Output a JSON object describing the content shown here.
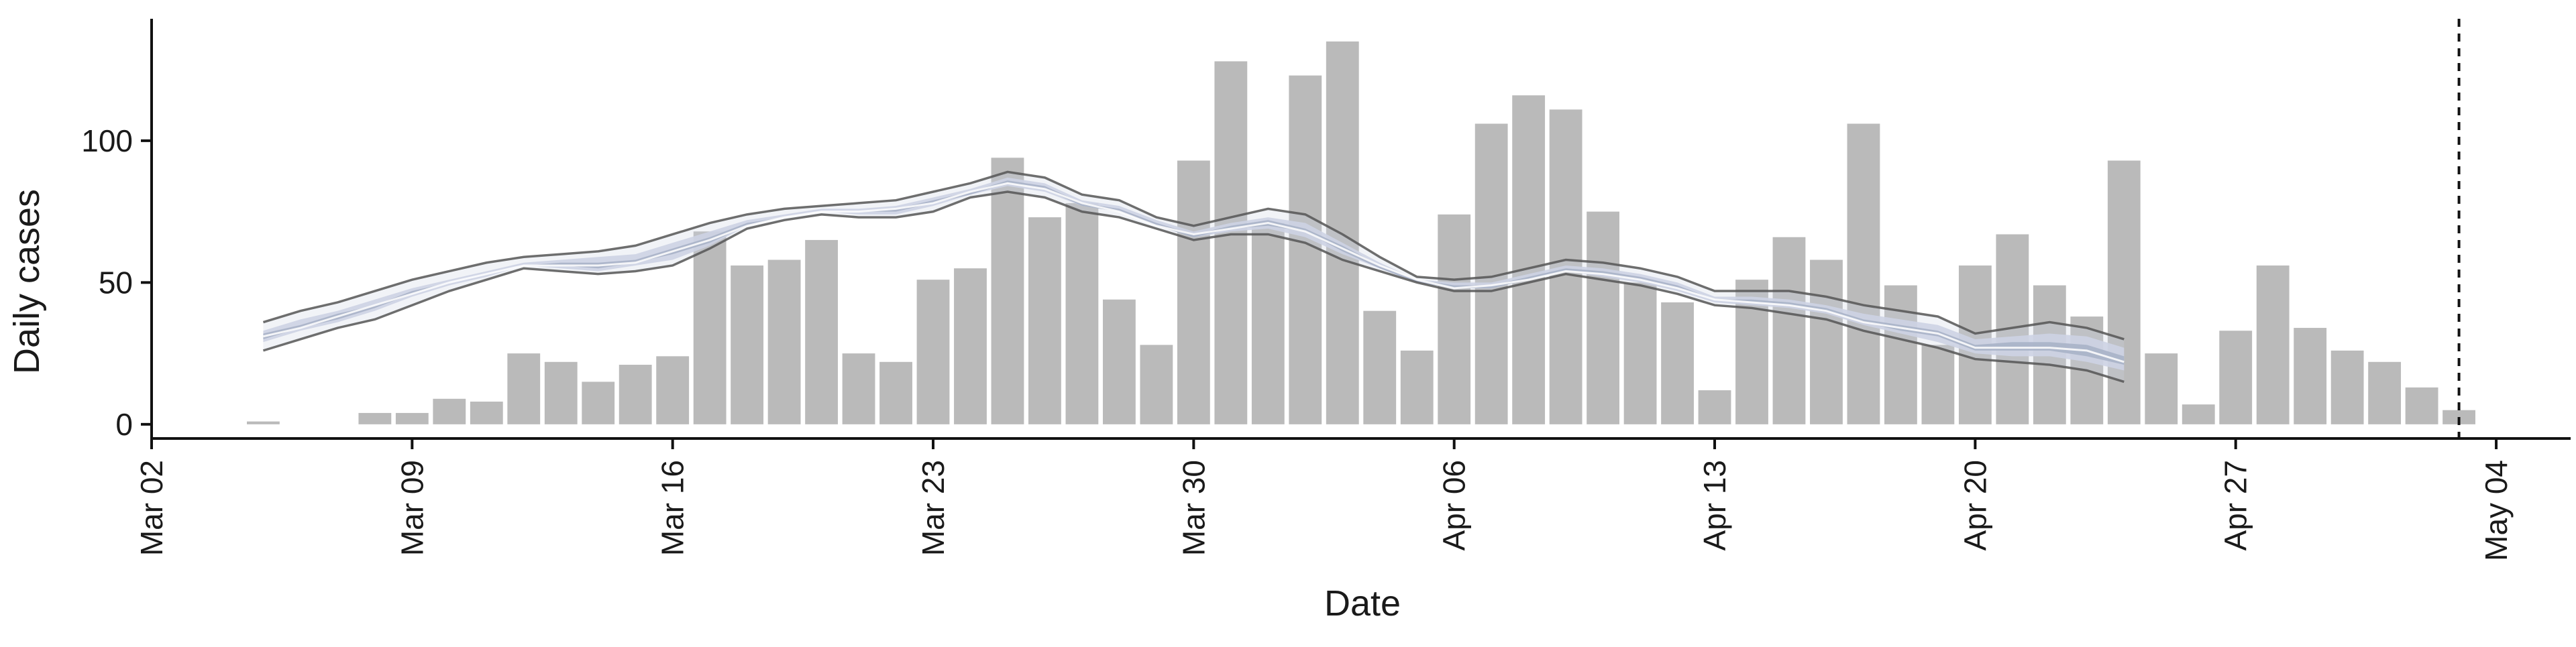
{
  "chart_data": {
    "type": "bar",
    "title": "",
    "xlabel": "Date",
    "ylabel": "Daily cases",
    "x_tick_labels": [
      "Mar 02",
      "Mar 09",
      "Mar 16",
      "Mar 23",
      "Mar 30",
      "Apr 06",
      "Apr 13",
      "Apr 20",
      "Apr 27",
      "May 04"
    ],
    "x_tick_dates": [
      "2020-03-02",
      "2020-03-09",
      "2020-03-16",
      "2020-03-23",
      "2020-03-30",
      "2020-04-06",
      "2020-04-13",
      "2020-04-20",
      "2020-04-27",
      "2020-05-04"
    ],
    "y_tick_labels": [
      "0",
      "50",
      "100"
    ],
    "y_tick_values": [
      0,
      50,
      100
    ],
    "xlim": [
      "2020-03-02",
      "2020-05-06"
    ],
    "ylim": [
      -5,
      143
    ],
    "grid": false,
    "reference_line_date": "2020-05-03",
    "colors": {
      "bars": "#bababa",
      "band_outer": "#cdd3e3",
      "band_inner": "#a9b2c8",
      "median": "#ffffff",
      "bounds_line": "#555555",
      "reference_line": "#111111",
      "axis": "#111111"
    },
    "bars": {
      "start_date": "2020-03-05",
      "values": [
        1,
        0,
        0,
        4,
        4,
        9,
        8,
        25,
        22,
        15,
        21,
        24,
        68,
        56,
        58,
        65,
        25,
        22,
        51,
        55,
        94,
        73,
        78,
        44,
        28,
        93,
        128,
        71,
        123,
        135,
        40,
        26,
        74,
        106,
        116,
        111,
        75,
        50,
        43,
        12,
        51,
        66,
        58,
        106,
        49,
        28,
        56,
        67,
        49,
        38,
        93,
        25,
        7,
        33,
        56,
        34,
        26,
        22,
        13,
        5
      ]
    },
    "nowcast": {
      "start_date": "2020-03-05",
      "upper": [
        36,
        40,
        43,
        47,
        51,
        54,
        57,
        59,
        60,
        61,
        63,
        67,
        71,
        74,
        76,
        77,
        78,
        79,
        82,
        85,
        89,
        87,
        81,
        79,
        73,
        70,
        73,
        76,
        74,
        67,
        59,
        52,
        51,
        52,
        55,
        58,
        57,
        55,
        52,
        47,
        47,
        47,
        45,
        42,
        40,
        38,
        32,
        34,
        36,
        34,
        30
      ],
      "lower": [
        26,
        30,
        34,
        37,
        42,
        47,
        51,
        55,
        54,
        53,
        54,
        56,
        62,
        69,
        72,
        74,
        73,
        73,
        75,
        80,
        82,
        80,
        75,
        73,
        69,
        65,
        67,
        67,
        64,
        58,
        54,
        50,
        47,
        47,
        50,
        53,
        51,
        49,
        46,
        42,
        41,
        39,
        37,
        33,
        30,
        27,
        23,
        22,
        21,
        19,
        15
      ],
      "band_outer_upper": [
        33,
        37,
        40,
        44,
        48,
        51,
        54,
        57,
        58,
        59,
        60,
        64,
        68,
        72,
        74,
        76,
        76,
        77,
        80,
        83,
        87,
        85,
        79,
        77,
        72,
        68,
        71,
        73,
        71,
        64,
        57,
        51,
        50,
        50,
        53,
        56,
        55,
        53,
        50,
        45,
        45,
        44,
        42,
        39,
        37,
        35,
        30,
        31,
        32,
        31,
        27
      ],
      "band_outer_lower": [
        29,
        33,
        36,
        40,
        45,
        49,
        52,
        56,
        55,
        54,
        56,
        58,
        63,
        70,
        73,
        75,
        74,
        74,
        77,
        81,
        84,
        82,
        77,
        75,
        70,
        66,
        68,
        69,
        66,
        60,
        55,
        50,
        48,
        48,
        51,
        54,
        52,
        50,
        47,
        43,
        42,
        41,
        39,
        35,
        32,
        29,
        25,
        24,
        24,
        22,
        19
      ],
      "band_inner_upper": [
        32,
        35,
        39,
        42,
        47,
        50,
        53,
        56,
        57,
        57,
        58,
        62,
        66,
        71,
        73,
        75,
        75,
        76,
        79,
        82,
        86,
        84,
        78,
        76,
        71,
        67,
        70,
        72,
        69,
        63,
        56,
        51,
        49,
        49,
        52,
        55,
        54,
        52,
        49,
        44,
        44,
        43,
        41,
        37,
        35,
        33,
        28,
        29,
        29,
        28,
        24
      ],
      "band_inner_lower": [
        30,
        34,
        37,
        41,
        46,
        50,
        53,
        56,
        56,
        55,
        57,
        60,
        64,
        70,
        73,
        75,
        75,
        75,
        78,
        81,
        85,
        83,
        77,
        75,
        70,
        66,
        69,
        70,
        68,
        61,
        55,
        50,
        48,
        48,
        51,
        54,
        53,
        51,
        48,
        44,
        43,
        42,
        40,
        36,
        33,
        31,
        26,
        26,
        26,
        24,
        21
      ],
      "median": [
        31,
        34,
        38,
        42,
        46,
        50,
        53,
        56,
        56,
        56,
        57,
        61,
        65,
        70,
        73,
        75,
        75,
        76,
        78,
        82,
        85,
        83,
        78,
        75,
        70,
        67,
        69,
        71,
        68,
        62,
        56,
        51,
        48,
        49,
        51,
        54,
        53,
        51,
        48,
        44,
        43,
        42,
        40,
        36,
        34,
        32,
        27,
        27,
        27,
        26,
        22
      ]
    }
  }
}
